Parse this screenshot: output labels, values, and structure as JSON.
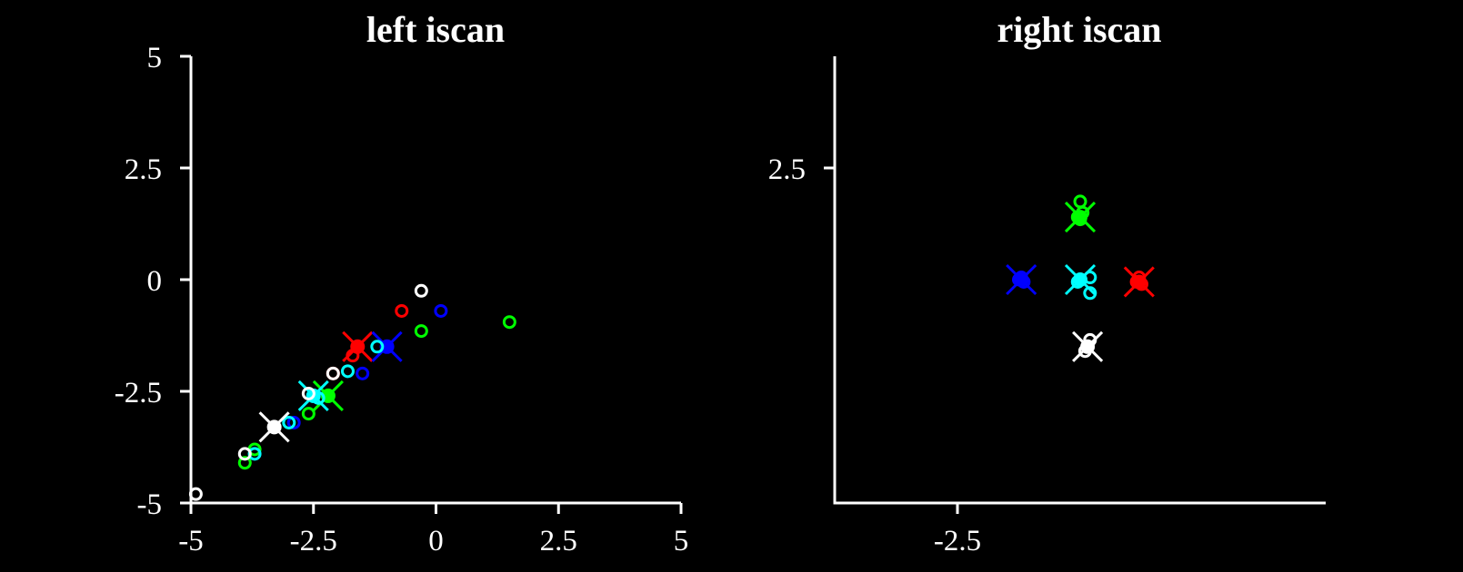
{
  "chart_data": [
    {
      "type": "scatter",
      "title": "left iscan",
      "xlabel": "",
      "ylabel": "",
      "xlim": [
        -5,
        5
      ],
      "ylim": [
        -5,
        5
      ],
      "xticks": [
        -5,
        -2.5,
        0,
        2.5,
        5
      ],
      "yticks": [
        -5,
        -2.5,
        0,
        2.5,
        5
      ],
      "xtick_labels": [
        "-5",
        "-2.5",
        "0",
        "2.5",
        "5"
      ],
      "ytick_labels": [
        "-5",
        "-2.5",
        "0",
        "2.5",
        "5"
      ],
      "grid": false,
      "series": [
        {
          "color": "#ff0000",
          "mean": [
            -1.6,
            -1.5
          ],
          "points": [
            [
              -0.7,
              -0.7
            ],
            [
              -1.7,
              -1.7
            ],
            [
              -2.1,
              -2.1
            ],
            [
              -1.6,
              -1.5
            ]
          ]
        },
        {
          "color": "#0000ff",
          "mean": [
            -1.0,
            -1.5
          ],
          "points": [
            [
              0.1,
              -0.7
            ],
            [
              -1.5,
              -2.1
            ],
            [
              -2.9,
              -3.2
            ],
            [
              -1.0,
              -1.5
            ]
          ]
        },
        {
          "color": "#00ff00",
          "mean": [
            -2.2,
            -2.6
          ],
          "points": [
            [
              1.5,
              -0.95
            ],
            [
              -0.3,
              -1.15
            ],
            [
              -2.6,
              -3.0
            ],
            [
              -3.7,
              -3.8
            ],
            [
              -3.9,
              -4.1
            ],
            [
              -2.2,
              -2.6
            ]
          ]
        },
        {
          "color": "#00ffff",
          "mean": [
            -2.5,
            -2.6
          ],
          "points": [
            [
              -1.2,
              -1.5
            ],
            [
              -1.8,
              -2.05
            ],
            [
              -3.0,
              -3.2
            ],
            [
              -3.7,
              -3.9
            ],
            [
              -2.4,
              -2.65
            ]
          ]
        },
        {
          "color": "#ffffff",
          "mean": [
            -3.3,
            -3.3
          ],
          "points": [
            [
              -0.3,
              -0.25
            ],
            [
              -2.1,
              -2.1
            ],
            [
              -2.6,
              -2.55
            ],
            [
              -3.9,
              -3.9
            ],
            [
              -4.9,
              -4.8
            ],
            [
              -3.3,
              -3.3
            ]
          ]
        }
      ]
    },
    {
      "type": "scatter",
      "title": "right iscan",
      "xlabel": "",
      "ylabel": "",
      "xlim": [
        -5,
        5
      ],
      "ylim": [
        -5,
        5
      ],
      "xticks": [
        -2.5
      ],
      "yticks": [
        2.5
      ],
      "xtick_labels": [
        "-2.5"
      ],
      "ytick_labels": [
        "2.5"
      ],
      "grid": false,
      "series": [
        {
          "color": "#0000ff",
          "mean": [
            -1.2,
            0.0
          ],
          "points": [
            [
              -1.2,
              0.05
            ],
            [
              -1.15,
              -0.05
            ],
            [
              -1.25,
              0.0
            ]
          ]
        },
        {
          "color": "#ff0000",
          "mean": [
            1.2,
            -0.05
          ],
          "points": [
            [
              1.2,
              0.05
            ],
            [
              1.25,
              -0.1
            ],
            [
              1.15,
              -0.05
            ]
          ]
        },
        {
          "color": "#00ff00",
          "mean": [
            0.0,
            1.4
          ],
          "points": [
            [
              0.0,
              1.75
            ],
            [
              0.05,
              1.5
            ],
            [
              0.0,
              1.35
            ],
            [
              -0.05,
              1.4
            ]
          ]
        },
        {
          "color": "#00ffff",
          "mean": [
            0.0,
            0.0
          ],
          "points": [
            [
              0.2,
              0.05
            ],
            [
              0.2,
              -0.3
            ],
            [
              -0.05,
              -0.05
            ],
            [
              0.0,
              0.0
            ]
          ]
        },
        {
          "color": "#ffffff",
          "mean": [
            0.15,
            -1.5
          ],
          "points": [
            [
              0.2,
              -1.35
            ],
            [
              0.1,
              -1.6
            ],
            [
              0.15,
              -1.5
            ]
          ]
        }
      ]
    }
  ]
}
